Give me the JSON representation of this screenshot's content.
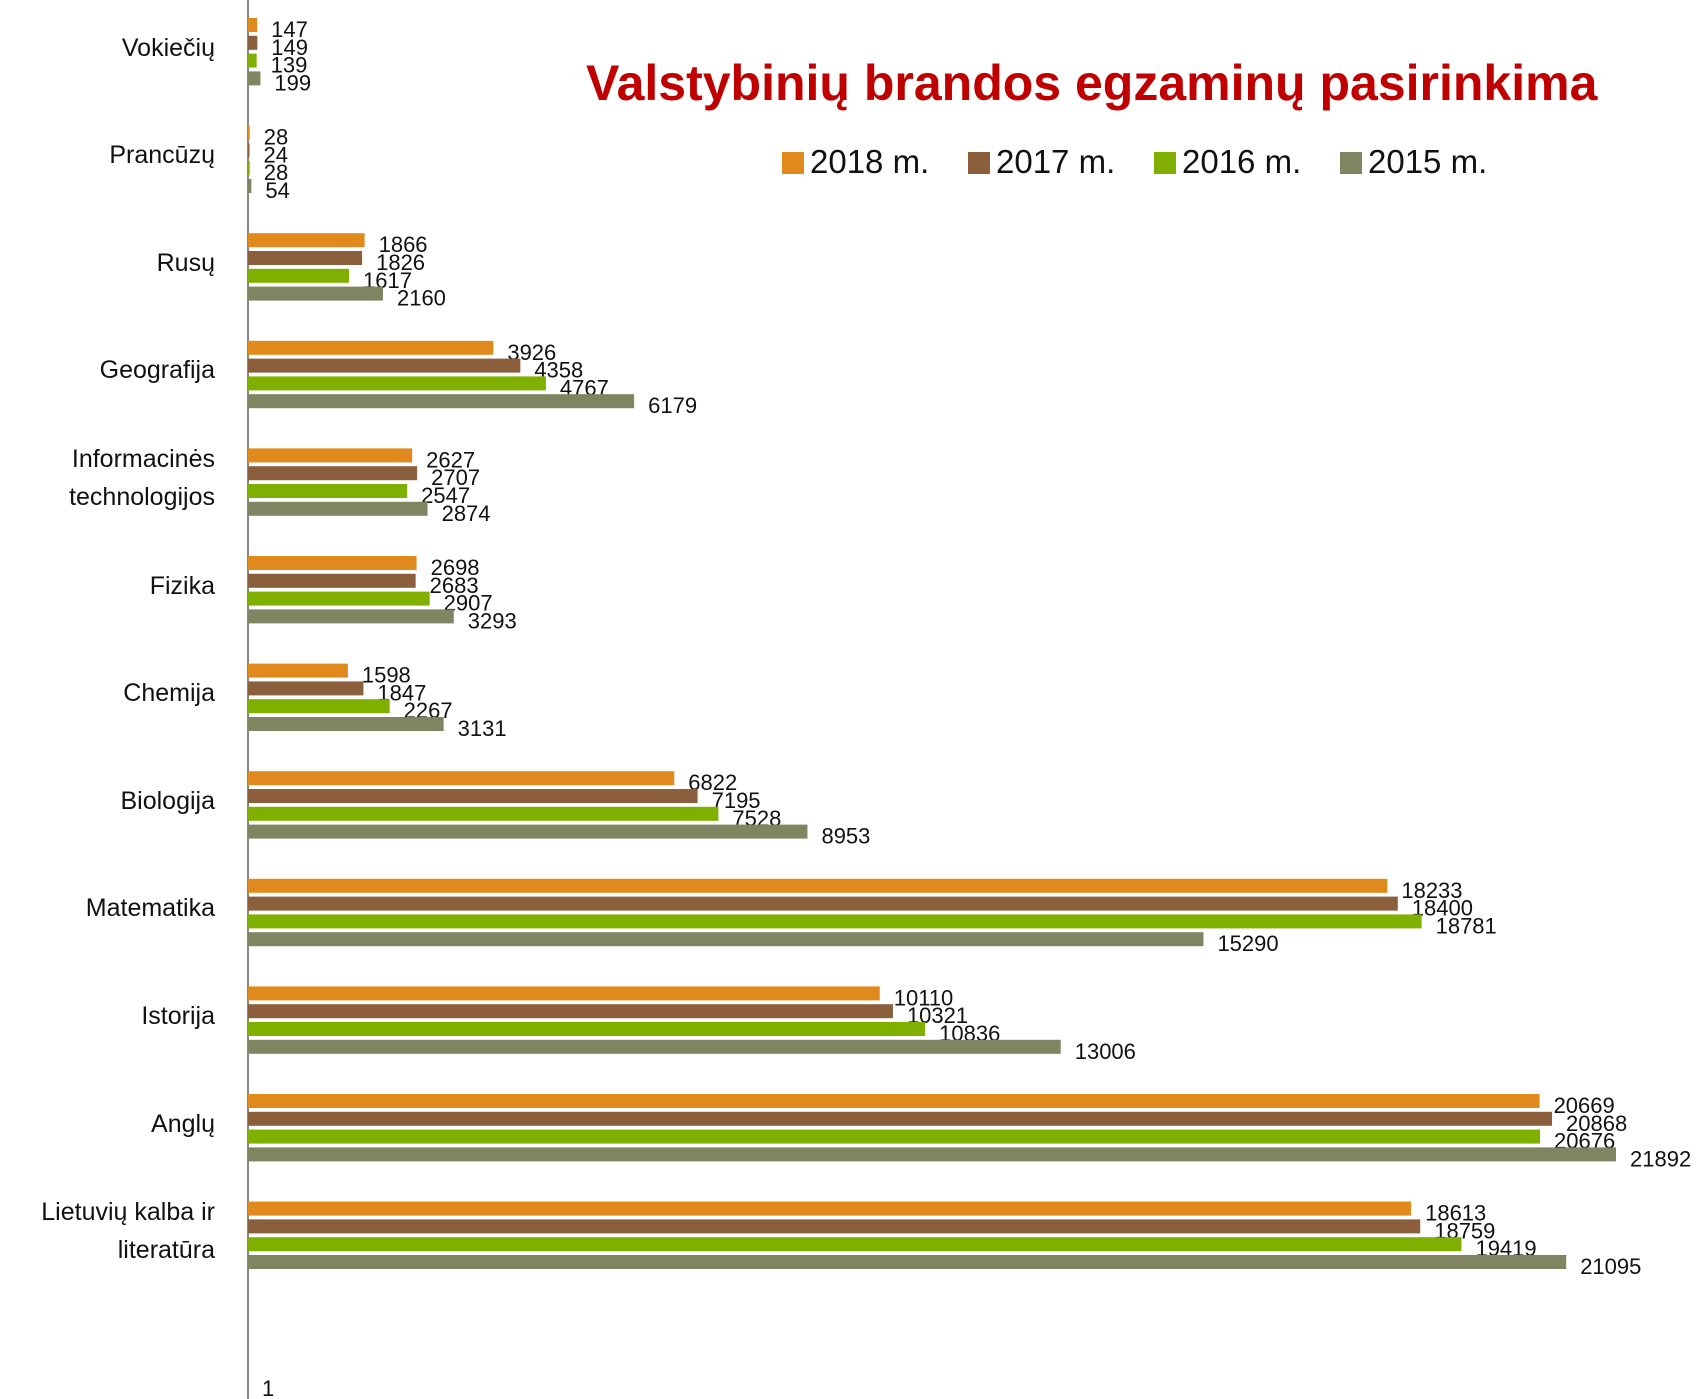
{
  "chart_data": {
    "type": "bar",
    "orientation": "horizontal",
    "title": "Valstybinių brandos egzaminų pasirinkima",
    "categories": [
      "Vokiečių",
      "Prancūzų",
      "Rusų",
      "Geografija",
      "Informacinės technologijos",
      "Fizika",
      "Chemija",
      "Biologija",
      "Matematika",
      "Istorija",
      "Anglų",
      "Lietuvių kalba ir literatūra"
    ],
    "series": [
      {
        "name": "2018 m.",
        "color": "#e08a1e",
        "values": [
          147,
          28,
          1866,
          3926,
          2627,
          2698,
          1598,
          6822,
          18233,
          10110,
          20669,
          18613
        ]
      },
      {
        "name": "2017 m.",
        "color": "#8b5e3c",
        "values": [
          149,
          24,
          1826,
          4358,
          2707,
          2683,
          1847,
          7195,
          18400,
          10321,
          20868,
          18759
        ]
      },
      {
        "name": "2016 m.",
        "color": "#7fb000",
        "values": [
          139,
          28,
          1617,
          4767,
          2547,
          2907,
          2267,
          7528,
          18781,
          10836,
          20676,
          19419
        ]
      },
      {
        "name": "2015 m.",
        "color": "#7f8560",
        "values": [
          199,
          54,
          2160,
          6179,
          2874,
          3293,
          3131,
          8953,
          15290,
          13006,
          21892,
          21095
        ]
      }
    ],
    "annotations": [
      "1"
    ],
    "legend": "top"
  }
}
